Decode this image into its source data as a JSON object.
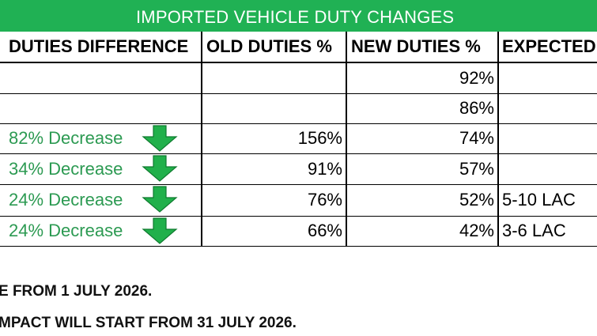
{
  "title": "IMPORTED VEHICLE DUTY CHANGES",
  "colors": {
    "title_bg": "#20b154",
    "decrease_text": "#2c9a52",
    "arrow": "#21b04b"
  },
  "table": {
    "headers": [
      "DUTIES DIFFERENCE",
      "OLD DUTIES %",
      "NEW DUTIES %",
      "EXPECTED"
    ],
    "rows": [
      {
        "difference": "",
        "old": "",
        "new": "92%",
        "expected": "",
        "arrow": false
      },
      {
        "difference": "",
        "old": "",
        "new": "86%",
        "expected": "",
        "arrow": false
      },
      {
        "difference": "82% Decrease",
        "old": "156%",
        "new": "74%",
        "expected": "",
        "arrow": true
      },
      {
        "difference": "34% Decrease",
        "old": "91%",
        "new": "57%",
        "expected": "",
        "arrow": true
      },
      {
        "difference": "24% Decrease",
        "old": "76%",
        "new": "52%",
        "expected": "5-10 LAC",
        "arrow": true
      },
      {
        "difference": "24% Decrease",
        "old": "66%",
        "new": "42%",
        "expected": "3-6 LAC",
        "arrow": true
      }
    ],
    "arrow_icon": "green-down-arrow-icon"
  },
  "notes": [
    "E FROM 1 JULY 2026.",
    "MPACT WILL START FROM 31 JULY 2026."
  ]
}
